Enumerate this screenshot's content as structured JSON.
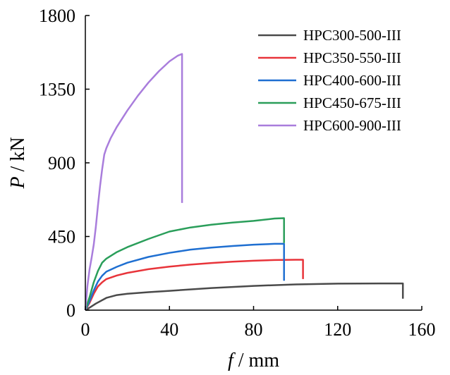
{
  "chart_data": {
    "type": "line",
    "xlabel": {
      "var": "f",
      "sep": " / ",
      "unit": "mm"
    },
    "ylabel": {
      "var": "P",
      "sep": " / ",
      "unit": "kN"
    },
    "xlim": [
      0,
      160
    ],
    "ylim": [
      0,
      1800
    ],
    "xticks": [
      0,
      40,
      80,
      120,
      160
    ],
    "yticks": [
      0,
      450,
      900,
      1350,
      1800
    ],
    "grid": false,
    "legend_position": "top-right",
    "series": [
      {
        "name": "HPC300-500-III",
        "color": "#4a4a4a",
        "points": [
          [
            0,
            0
          ],
          [
            2,
            15
          ],
          [
            5,
            40
          ],
          [
            10,
            75
          ],
          [
            15,
            92
          ],
          [
            20,
            100
          ],
          [
            30,
            110
          ],
          [
            40,
            118
          ],
          [
            60,
            135
          ],
          [
            80,
            148
          ],
          [
            100,
            157
          ],
          [
            120,
            162
          ],
          [
            140,
            163
          ],
          [
            151,
            163
          ],
          [
            151,
            70
          ]
        ]
      },
      {
        "name": "HPC350-550-III",
        "color": "#e8343a",
        "points": [
          [
            0,
            0
          ],
          [
            2,
            45
          ],
          [
            4,
            100
          ],
          [
            6,
            145
          ],
          [
            8,
            170
          ],
          [
            10,
            190
          ],
          [
            15,
            212
          ],
          [
            20,
            228
          ],
          [
            30,
            250
          ],
          [
            40,
            266
          ],
          [
            50,
            278
          ],
          [
            60,
            288
          ],
          [
            70,
            296
          ],
          [
            80,
            302
          ],
          [
            90,
            306
          ],
          [
            100,
            308
          ],
          [
            103.5,
            308
          ],
          [
            103.5,
            190
          ]
        ]
      },
      {
        "name": "HPC400-600-III",
        "color": "#1f6fd1",
        "points": [
          [
            0,
            0
          ],
          [
            2,
            55
          ],
          [
            4,
            120
          ],
          [
            6,
            175
          ],
          [
            8,
            210
          ],
          [
            10,
            235
          ],
          [
            15,
            265
          ],
          [
            20,
            290
          ],
          [
            30,
            325
          ],
          [
            40,
            350
          ],
          [
            50,
            370
          ],
          [
            60,
            382
          ],
          [
            70,
            392
          ],
          [
            80,
            400
          ],
          [
            90,
            405
          ],
          [
            94.5,
            405
          ],
          [
            94.5,
            180
          ]
        ]
      },
      {
        "name": "HPC450-675-III",
        "color": "#2a9e5a",
        "points": [
          [
            0,
            0
          ],
          [
            2,
            80
          ],
          [
            4,
            170
          ],
          [
            6,
            240
          ],
          [
            8,
            290
          ],
          [
            10,
            315
          ],
          [
            15,
            355
          ],
          [
            20,
            385
          ],
          [
            30,
            435
          ],
          [
            40,
            480
          ],
          [
            50,
            505
          ],
          [
            60,
            522
          ],
          [
            70,
            535
          ],
          [
            80,
            545
          ],
          [
            90,
            560
          ],
          [
            94.5,
            562
          ],
          [
            94.5,
            410
          ]
        ]
      },
      {
        "name": "HPC600-900-III",
        "color": "#a97ddc",
        "points": [
          [
            0,
            0
          ],
          [
            1,
            150
          ],
          [
            2,
            250
          ],
          [
            3,
            320
          ],
          [
            4,
            400
          ],
          [
            5,
            510
          ],
          [
            6,
            640
          ],
          [
            7,
            760
          ],
          [
            8,
            860
          ],
          [
            9,
            950
          ],
          [
            10,
            990
          ],
          [
            12,
            1050
          ],
          [
            15,
            1120
          ],
          [
            20,
            1220
          ],
          [
            25,
            1310
          ],
          [
            30,
            1390
          ],
          [
            35,
            1460
          ],
          [
            40,
            1520
          ],
          [
            44,
            1555
          ],
          [
            46,
            1565
          ],
          [
            46,
            655
          ]
        ]
      }
    ]
  }
}
